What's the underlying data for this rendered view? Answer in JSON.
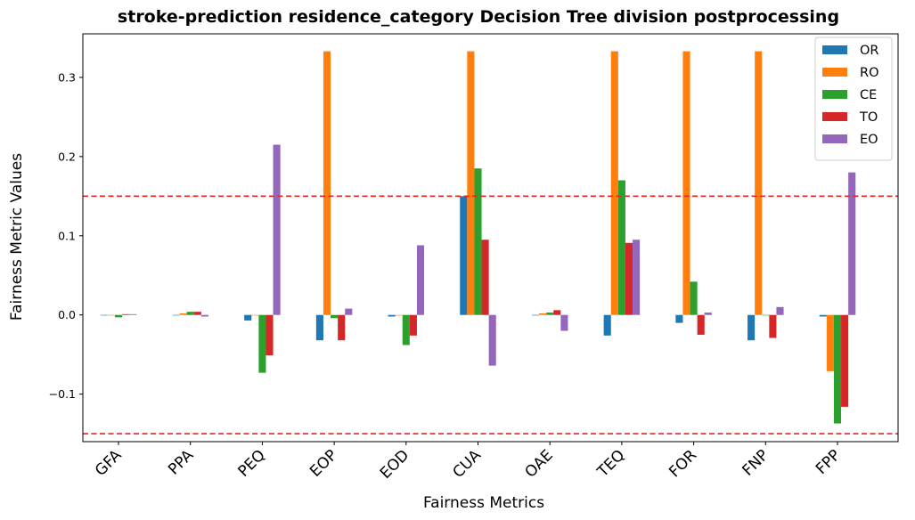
{
  "chart_data": {
    "type": "bar",
    "title": "stroke-prediction residence_category Decision Tree division postprocessing",
    "xlabel": "Fairness Metrics",
    "ylabel": "Fairness Metric Values",
    "categories": [
      "GFA",
      "PPA",
      "PEQ",
      "EOP",
      "EOD",
      "CUA",
      "OAE",
      "TEQ",
      "FOR",
      "FNP",
      "FPP"
    ],
    "yticks": [
      "−0.1",
      "0.0",
      "0.1",
      "0.2",
      "0.3"
    ],
    "ytick_values": [
      -0.1,
      0.0,
      0.1,
      0.2,
      0.3
    ],
    "ylim": [
      -0.16,
      0.355
    ],
    "threshold_lines": [
      0.15,
      -0.15
    ],
    "threshold_color": "#e8251f",
    "legend_position": "top-right",
    "series": [
      {
        "name": "OR",
        "color": "#1f77b4",
        "values": [
          0.0,
          0.0,
          -0.007,
          -0.032,
          -0.002,
          0.15,
          0.0,
          -0.026,
          -0.01,
          -0.032,
          -0.002
        ]
      },
      {
        "name": "RO",
        "color": "#ff7f0e",
        "values": [
          0.0,
          0.002,
          0.0,
          0.333,
          0.0,
          0.333,
          0.002,
          0.333,
          0.333,
          0.333,
          -0.071
        ]
      },
      {
        "name": "CE",
        "color": "#2ca02c",
        "values": [
          -0.003,
          0.004,
          -0.073,
          -0.004,
          -0.038,
          0.185,
          0.003,
          0.17,
          0.042,
          0.0,
          -0.137
        ]
      },
      {
        "name": "TO",
        "color": "#d62728",
        "values": [
          0.001,
          0.004,
          -0.051,
          -0.032,
          -0.026,
          0.095,
          0.006,
          0.091,
          -0.025,
          -0.029,
          -0.116
        ]
      },
      {
        "name": "EO",
        "color": "#9467bd",
        "values": [
          0.001,
          -0.002,
          0.215,
          0.008,
          0.088,
          -0.064,
          -0.02,
          0.095,
          0.003,
          0.01,
          0.18
        ]
      }
    ]
  }
}
